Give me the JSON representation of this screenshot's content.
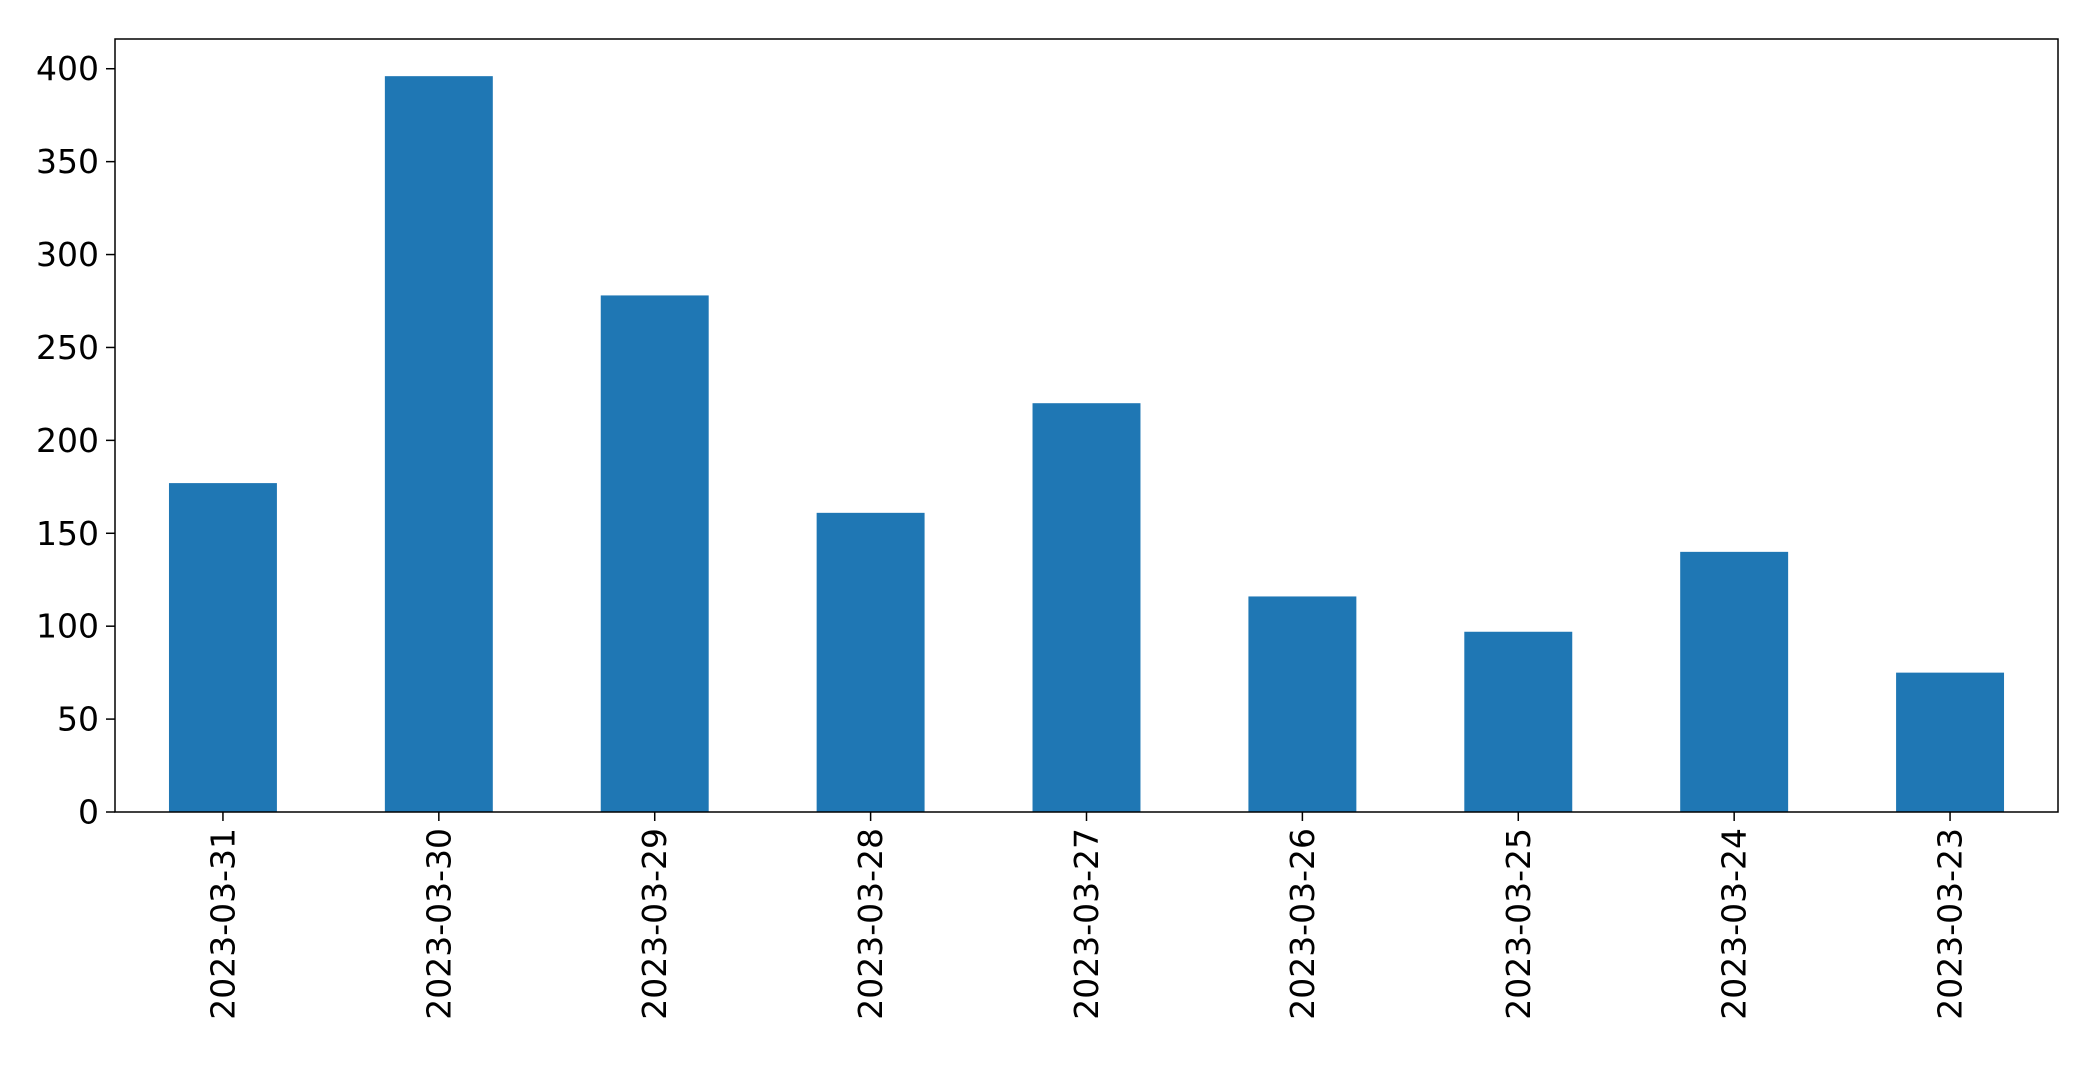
{
  "chart_data": {
    "type": "bar",
    "title": "",
    "xlabel": "",
    "ylabel": "",
    "categories": [
      "2023-03-31",
      "2023-03-30",
      "2023-03-29",
      "2023-03-28",
      "2023-03-27",
      "2023-03-26",
      "2023-03-25",
      "2023-03-24",
      "2023-03-23"
    ],
    "values": [
      177,
      396,
      278,
      161,
      220,
      116,
      97,
      140,
      75
    ],
    "ylim": [
      0,
      416
    ],
    "yticks": [
      0,
      50,
      100,
      150,
      200,
      250,
      300,
      350,
      400
    ],
    "ytick_labels": [
      "0",
      "50",
      "100",
      "150",
      "200",
      "250",
      "300",
      "350",
      "400"
    ],
    "bar_color": "#1f77b4",
    "grid": false,
    "legend": false
  }
}
